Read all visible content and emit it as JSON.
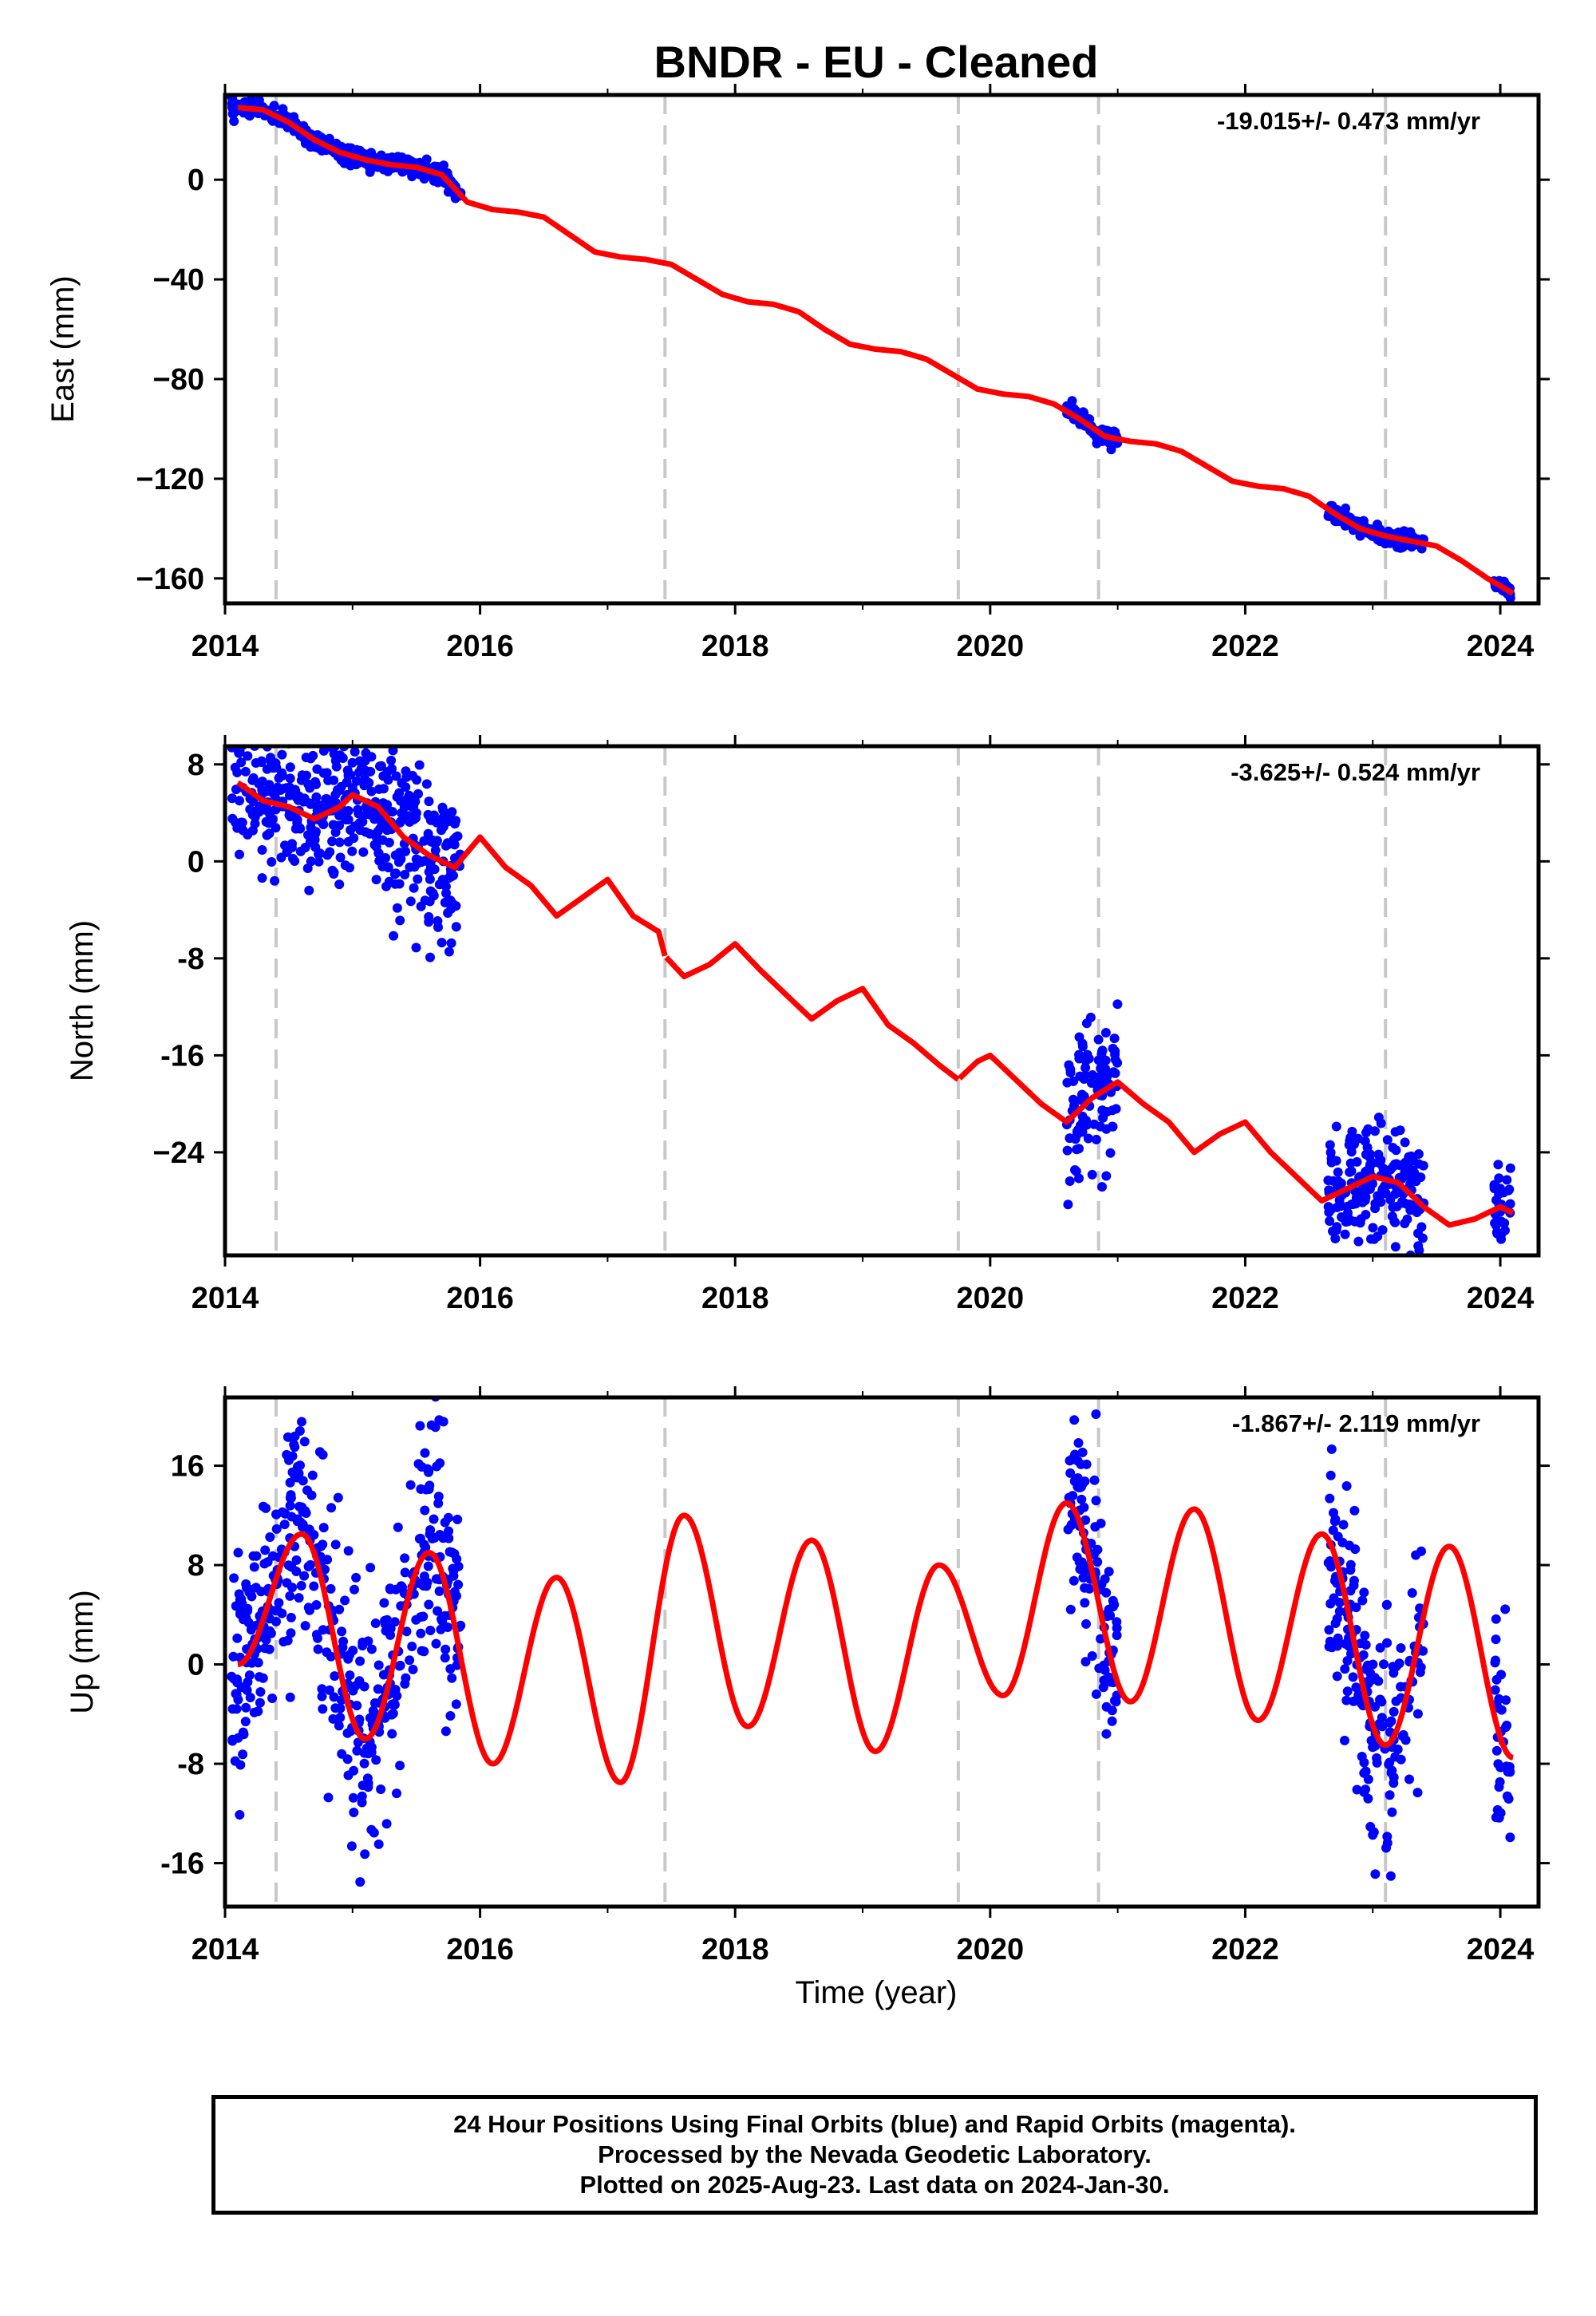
{
  "figure": {
    "title": "BNDR  - EU - Cleaned",
    "xlabel": "Time (year)"
  },
  "footer": {
    "lines": [
      "24 Hour Positions Using Final Orbits (blue) and Rapid Orbits (magenta).",
      "Processed by the Nevada Geodetic Laboratory.",
      "Plotted on 2025-Aug-23. Last data on 2024-Jan-30."
    ]
  },
  "colors": {
    "points": "#0000ff",
    "model": "#ff0000",
    "events": "#c8c8c8",
    "frame": "#000000"
  },
  "chart_data": [
    {
      "type": "scatter",
      "name": "east",
      "ylabel": "East (mm)",
      "rate_label": "-19.015+/- 0.473 mm/yr",
      "xlim": [
        2014.0,
        2024.3
      ],
      "ylim": [
        -170,
        34
      ],
      "yticks": [
        0,
        -40,
        -80,
        -120,
        -160
      ],
      "ytick_labels": [
        "0",
        "−40",
        "−80",
        "−120",
        "−160"
      ],
      "xticks": [
        2014,
        2016,
        2018,
        2020,
        2022,
        2024
      ],
      "xtick_labels": [
        "2014",
        "2016",
        "2018",
        "2020",
        "2022",
        "2024"
      ],
      "event_lines": [
        2014.4,
        2017.45,
        2019.75,
        2020.85,
        2023.1
      ],
      "model": {
        "x": [
          2014.1,
          2014.3,
          2014.5,
          2014.7,
          2014.9,
          2015.1,
          2015.3,
          2015.5,
          2015.7,
          2015.9,
          2016.1,
          2016.3,
          2016.5,
          2016.7,
          2016.9,
          2017.1,
          2017.3,
          2017.5,
          2017.7,
          2017.9,
          2018.1,
          2018.3,
          2018.5,
          2018.7,
          2018.9,
          2019.1,
          2019.3,
          2019.5,
          2019.7,
          2019.9,
          2020.1,
          2020.3,
          2020.5,
          2020.7,
          2020.9,
          2021.1,
          2021.3,
          2021.5,
          2021.7,
          2021.9,
          2022.1,
          2022.3,
          2022.5,
          2022.7,
          2022.9,
          2023.1,
          2023.3,
          2023.5,
          2023.7,
          2023.9,
          2024.1
        ],
        "y": [
          29,
          28,
          23,
          16,
          11,
          8,
          6,
          5,
          2,
          -9,
          -12,
          -13,
          -15,
          -22,
          -29,
          -31,
          -32,
          -34,
          -40,
          -46,
          -49,
          -50,
          -53,
          -60,
          -66,
          -68,
          -69,
          -72,
          -78,
          -84,
          -86,
          -87,
          -90,
          -96,
          -103,
          -105,
          -106,
          -109,
          -115,
          -121,
          -123,
          -124,
          -127,
          -134,
          -140,
          -143,
          -145,
          -147,
          -153,
          -160,
          -166
        ]
      },
      "point_segments": [
        {
          "start": 2014.05,
          "end": 2015.85,
          "spread": 1.6
        },
        {
          "start": 2020.6,
          "end": 2021.0,
          "spread": 1.8
        },
        {
          "start": 2022.65,
          "end": 2023.4,
          "spread": 1.5
        },
        {
          "start": 2023.95,
          "end": 2024.08,
          "spread": 1.2
        }
      ]
    },
    {
      "type": "scatter",
      "name": "north",
      "ylabel": "North (mm)",
      "rate_label": "-3.625+/- 0.524 mm/yr",
      "xlim": [
        2014.0,
        2024.3
      ],
      "ylim": [
        -32.5,
        9.5
      ],
      "yticks": [
        8,
        0,
        -8,
        -16,
        -24
      ],
      "ytick_labels": [
        "8",
        "0",
        "-8",
        "-16",
        "−24"
      ],
      "xticks": [
        2014,
        2016,
        2018,
        2020,
        2022,
        2024
      ],
      "xtick_labels": [
        "2014",
        "2016",
        "2018",
        "2020",
        "2022",
        "2024"
      ],
      "event_lines": [
        2014.4,
        2017.45,
        2019.75,
        2020.85,
        2023.1
      ],
      "model": {
        "x": [
          2014.1,
          2014.3,
          2014.5,
          2014.7,
          2014.9,
          2015.0,
          2015.2,
          2015.4,
          2015.6,
          2015.8,
          2016.0,
          2016.2,
          2016.4,
          2016.6,
          2016.8,
          2017.0,
          2017.2,
          2017.4,
          2017.45,
          2017.6,
          2017.8,
          2018.0,
          2018.2,
          2018.4,
          2018.6,
          2018.8,
          2019.0,
          2019.2,
          2019.4,
          2019.6,
          2019.75,
          2019.9,
          2020.0,
          2020.2,
          2020.4,
          2020.6,
          2020.8,
          2021.0,
          2021.2,
          2021.4,
          2021.6,
          2021.8,
          2022.0,
          2022.2,
          2022.4,
          2022.6,
          2022.8,
          2023.0,
          2023.2,
          2023.4,
          2023.6,
          2023.8,
          2024.0,
          2024.1
        ],
        "y": [
          6.5,
          5,
          4.5,
          3.5,
          4.5,
          5.5,
          4.5,
          2,
          0.5,
          -0.5,
          2,
          -0.5,
          -2,
          -4.5,
          -3,
          -1.5,
          -4.5,
          -5.8,
          -7.8,
          -9.5,
          -8.5,
          -6.8,
          -9,
          -11,
          -13,
          -11.5,
          -10.5,
          -13.5,
          -15,
          -16.8,
          -18,
          -16.5,
          -16,
          -18,
          -20,
          -21.5,
          -19.5,
          -18.2,
          -20,
          -21.5,
          -24,
          -22.5,
          -21.5,
          -24,
          -26,
          -28,
          -27,
          -26,
          -26.5,
          -28.5,
          -30,
          -29.5,
          -28.5,
          -29
        ],
        "breaks": [
          2017.45,
          2019.75
        ]
      },
      "point_segments": [
        {
          "start": 2014.05,
          "end": 2015.85,
          "spread": 3.2
        },
        {
          "start": 2020.6,
          "end": 2021.0,
          "spread": 3.0
        },
        {
          "start": 2022.65,
          "end": 2023.4,
          "spread": 2.4
        },
        {
          "start": 2023.95,
          "end": 2024.08,
          "spread": 1.8
        }
      ]
    },
    {
      "type": "scatter",
      "name": "up",
      "ylabel": "Up (mm)",
      "rate_label": "-1.867+/- 2.119 mm/yr",
      "xlim": [
        2014.0,
        2024.3
      ],
      "ylim": [
        -19.5,
        21.5
      ],
      "yticks": [
        16,
        8,
        0,
        -8,
        -16
      ],
      "ytick_labels": [
        "16",
        "8",
        "0",
        "-8",
        "-16"
      ],
      "xticks": [
        2014,
        2016,
        2018,
        2020,
        2022,
        2024
      ],
      "xtick_labels": [
        "2014",
        "2016",
        "2018",
        "2020",
        "2022",
        "2024"
      ],
      "event_lines": [
        2014.4,
        2017.45,
        2019.75,
        2020.85,
        2023.1
      ],
      "model": {
        "seasonal_amplitude": 9.5,
        "peak_phase": 0.63,
        "trend_per_year": -0.15,
        "x": [
          2014.1,
          2014.6,
          2015.1,
          2015.6,
          2016.1,
          2016.6,
          2017.1,
          2017.6,
          2018.1,
          2018.6,
          2019.1,
          2019.6,
          2020.1,
          2020.6,
          2021.1,
          2021.6,
          2022.1,
          2022.6,
          2023.1,
          2023.6,
          2024.1
        ],
        "y": [
          0,
          10.5,
          -6,
          9,
          -8,
          7,
          -9.5,
          12,
          -5,
          10,
          -7,
          8,
          -2.5,
          13,
          -3,
          12.5,
          -4.5,
          10.5,
          -6.5,
          9.5,
          -7.5
        ]
      },
      "point_segments": [
        {
          "start": 2014.05,
          "end": 2015.85,
          "spread": 5.0
        },
        {
          "start": 2020.6,
          "end": 2021.0,
          "spread": 4.5
        },
        {
          "start": 2022.65,
          "end": 2023.4,
          "spread": 4.5
        },
        {
          "start": 2023.95,
          "end": 2024.08,
          "spread": 4.0
        }
      ]
    }
  ]
}
